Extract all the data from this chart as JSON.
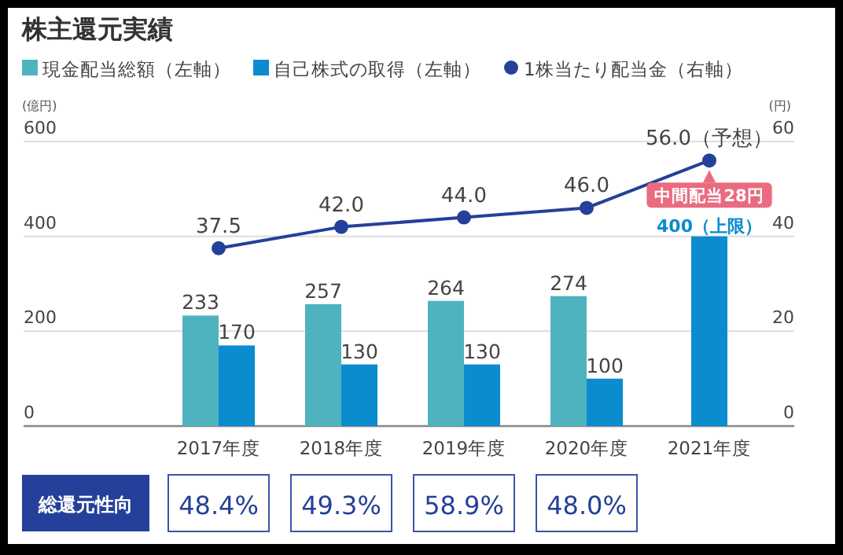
{
  "chart_data": {
    "type": "bar",
    "title": "株主還元実績",
    "categories": [
      "2017年度",
      "2018年度",
      "2019年度",
      "2020年度",
      "2021年度"
    ],
    "series": [
      {
        "name": "現金配当総額（左軸）",
        "color": "#4fb3bf",
        "values": [
          233,
          257,
          264,
          274,
          null
        ],
        "value_labels": [
          "233",
          "257",
          "264",
          "274",
          null
        ]
      },
      {
        "name": "自己株式の取得（左軸）",
        "color": "#0a8ccf",
        "values": [
          170,
          130,
          130,
          100,
          400
        ],
        "value_labels": [
          "170",
          "130",
          "130",
          "100",
          "400（上限）"
        ]
      },
      {
        "name": "1株当たり配当金（右軸）",
        "type": "line",
        "axis": "y2",
        "marker": "circle",
        "color": "#24409a",
        "values": [
          37.5,
          42.0,
          44.0,
          46.0,
          56.0
        ],
        "value_labels": [
          "37.5",
          "42.0",
          "44.0",
          "46.0",
          "56.0（予想）"
        ]
      }
    ],
    "ylabel": "(億円)",
    "y2label": "(円)",
    "ylim": [
      0,
      600
    ],
    "yticks": [
      0,
      200,
      400,
      600
    ],
    "y2lim": [
      0,
      60
    ],
    "y2ticks": [
      0,
      20,
      40,
      60
    ],
    "grid": "y",
    "legend": "top",
    "annotations": [
      "中間配当28円",
      "総還元性向",
      "48.4%",
      "49.3%",
      "58.9%",
      "48.0%"
    ]
  }
}
